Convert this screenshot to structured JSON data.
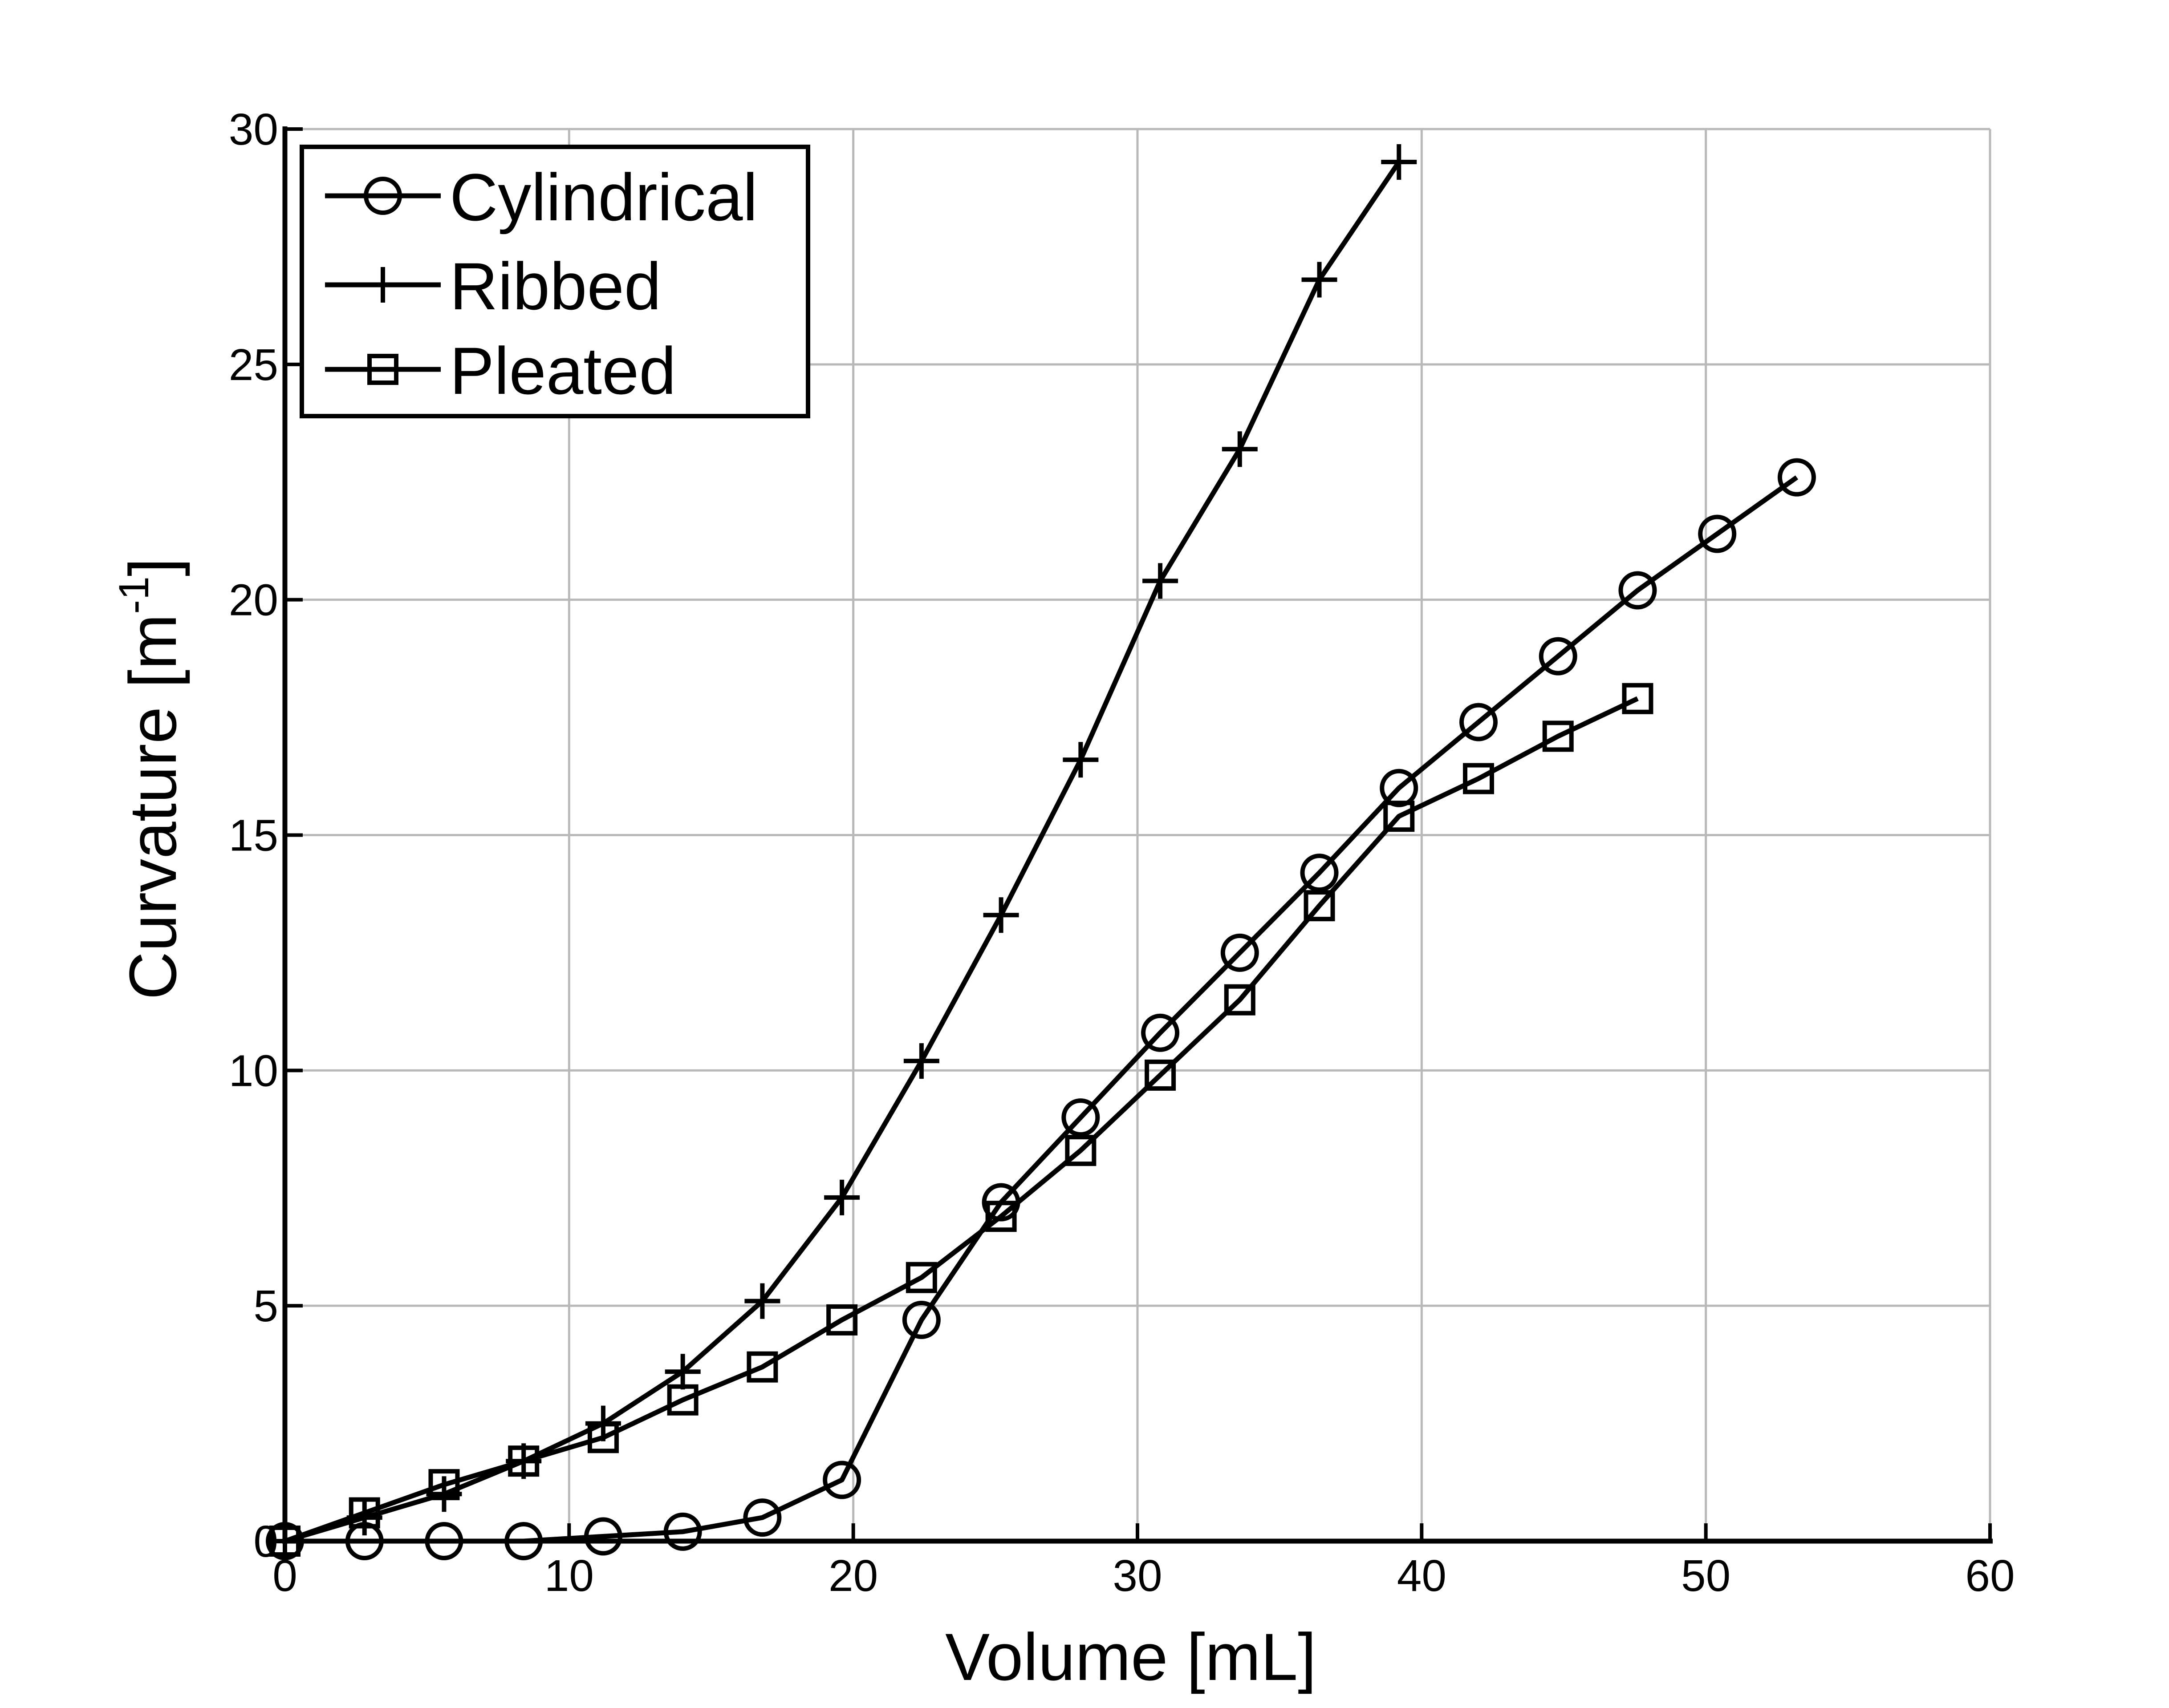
{
  "chart_data": {
    "type": "line",
    "xlabel": "Volume [mL]",
    "ylabel": {
      "main": "Curvature [m",
      "sup": "-1",
      "close": "]"
    },
    "xlim": [
      0,
      60
    ],
    "ylim": [
      0,
      30
    ],
    "x_ticks": [
      0,
      10,
      20,
      30,
      40,
      50,
      60
    ],
    "y_ticks": [
      0,
      5,
      10,
      15,
      20,
      25,
      30
    ],
    "grid": true,
    "legend_position": "top-left",
    "series": [
      {
        "name": "Cylindrical",
        "marker": "circle",
        "x": [
          0,
          2.8,
          5.6,
          8.4,
          11.2,
          14.0,
          16.8,
          19.6,
          22.4,
          25.2,
          28.0,
          30.8,
          33.6,
          36.4,
          39.2,
          42.0,
          44.8,
          47.6,
          50.4,
          53.2
        ],
        "y": [
          0,
          0,
          0,
          0,
          0.1,
          0.2,
          0.5,
          1.3,
          4.7,
          7.2,
          9.0,
          10.8,
          12.5,
          14.2,
          16.0,
          17.4,
          18.8,
          20.2,
          21.4,
          22.6
        ]
      },
      {
        "name": "Ribbed",
        "marker": "plus",
        "x": [
          0,
          2.8,
          5.6,
          8.4,
          11.2,
          14.0,
          16.8,
          19.6,
          22.4,
          25.2,
          28.0,
          30.8,
          33.6,
          36.4,
          39.2
        ],
        "y": [
          0,
          0.5,
          1.0,
          1.7,
          2.5,
          3.6,
          5.1,
          7.3,
          10.2,
          13.3,
          16.6,
          20.4,
          23.2,
          26.8,
          29.3
        ]
      },
      {
        "name": "Pleated",
        "marker": "square",
        "x": [
          0,
          2.8,
          5.6,
          8.4,
          11.2,
          14.0,
          16.8,
          19.6,
          22.4,
          25.2,
          28.0,
          30.8,
          33.6,
          36.4,
          39.2,
          42.0,
          44.8,
          47.6
        ],
        "y": [
          0,
          0.6,
          1.2,
          1.7,
          2.2,
          3.0,
          3.7,
          4.7,
          5.6,
          6.9,
          8.3,
          9.9,
          11.5,
          13.5,
          15.4,
          16.2,
          17.1,
          17.9
        ]
      }
    ]
  }
}
